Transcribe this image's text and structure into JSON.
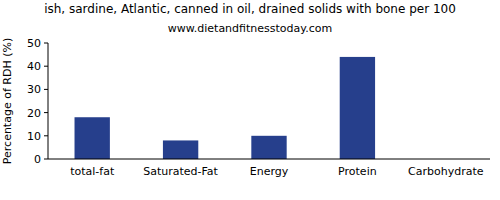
{
  "chart_data": {
    "type": "bar",
    "title": "ish, sardine, Atlantic, canned in oil, drained solids with bone per 100",
    "subtitle": "www.dietandfitnesstoday.com",
    "y_label": "Percentage of RDH (%)",
    "categories": [
      "total-fat",
      "Saturated-Fat",
      "Energy",
      "Protein",
      "Carbohydrate"
    ],
    "values": [
      18,
      8,
      10,
      44,
      0
    ],
    "color": "#263f8c",
    "ylim": [
      0,
      50
    ],
    "yticks": [
      0,
      10,
      20,
      30,
      40,
      50
    ],
    "grid": false
  }
}
